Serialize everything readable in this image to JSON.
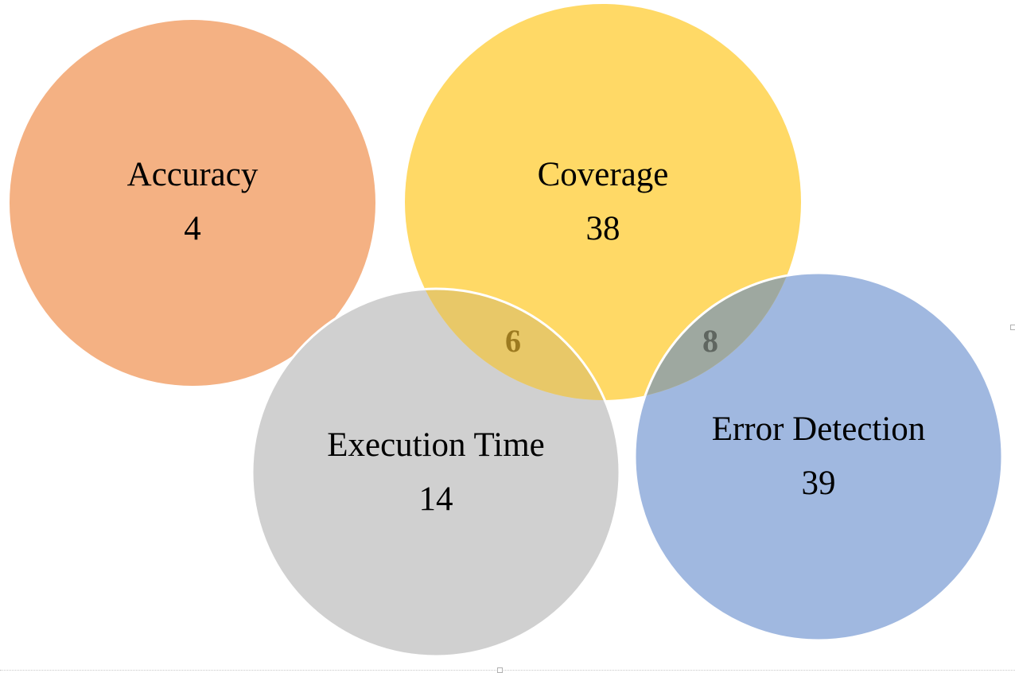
{
  "sets": [
    {
      "key": "accuracy",
      "name": "Accuracy",
      "count": "4",
      "color": "#F4B183"
    },
    {
      "key": "coverage",
      "name": "Coverage",
      "count": "38",
      "color": "#FFD966"
    },
    {
      "key": "execution_time",
      "name": "Execution Time",
      "count": "14",
      "color": "#D0D0D0"
    },
    {
      "key": "error_detection",
      "name": "Error Detection",
      "count": "39",
      "color": "#A0B8E0"
    }
  ],
  "overlaps": [
    {
      "key": "coverage_execution",
      "count": "6",
      "color": "#9C7A20"
    },
    {
      "key": "coverage_error",
      "count": "8",
      "color": "#5F6660"
    }
  ]
}
